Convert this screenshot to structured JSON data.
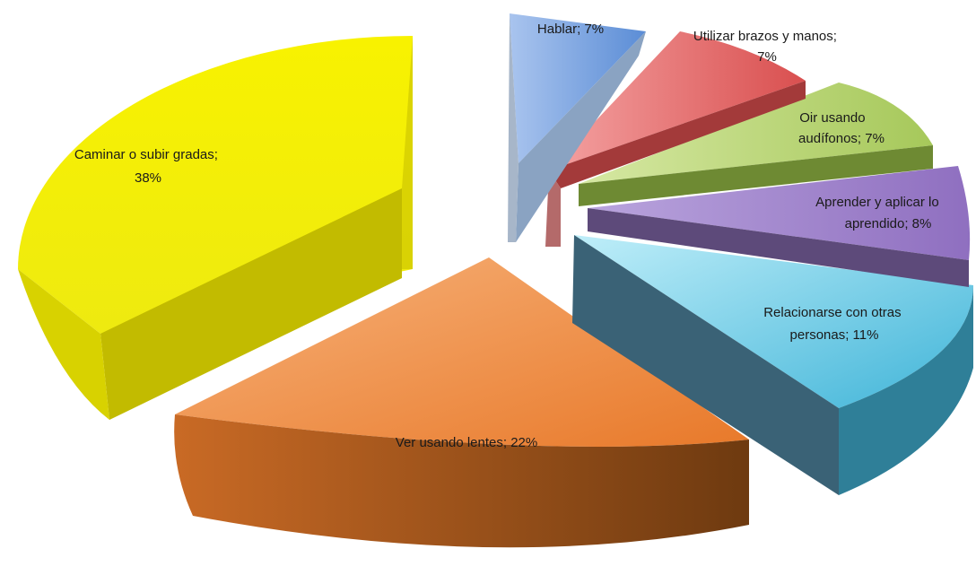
{
  "chart_data": {
    "type": "pie",
    "style": "3d-exploded",
    "slices": [
      {
        "label": "Caminar o subir gradas",
        "value": 38,
        "display": "38%",
        "color": "#f3ee16"
      },
      {
        "label": "Ver usando lentes",
        "value": 22,
        "display": "22%",
        "color": "#e8853a"
      },
      {
        "label": "Relacionarse con otras personas",
        "value": 11,
        "display": "11%",
        "color": "#5fc9e4"
      },
      {
        "label": "Aprender y aplicar lo aprendido",
        "value": 8,
        "display": "8%",
        "color": "#9a7bc4"
      },
      {
        "label": "Oir usando audífonos",
        "value": 7,
        "display": "7%",
        "color": "#b5cf6a"
      },
      {
        "label": "Utilizar brazos y manos",
        "value": 7,
        "display": "7%",
        "color": "#e06a6a"
      },
      {
        "label": "Hablar",
        "value": 7,
        "display": "7%",
        "color": "#6f9bd9"
      }
    ],
    "label_lines": {
      "caminar": [
        "Caminar o subir gradas;",
        "38%"
      ],
      "ver": [
        "Ver usando lentes; 22%"
      ],
      "relacionarse": [
        "Relacionarse con otras",
        "personas; 11%"
      ],
      "aprender": [
        "Aprender y aplicar lo",
        "aprendido; 8%"
      ],
      "oir": [
        "Oir usando",
        "audífonos; 7%"
      ],
      "utilizar": [
        "Utilizar brazos y manos;",
        "7%"
      ],
      "hablar": [
        "Hablar; 7%"
      ]
    }
  }
}
